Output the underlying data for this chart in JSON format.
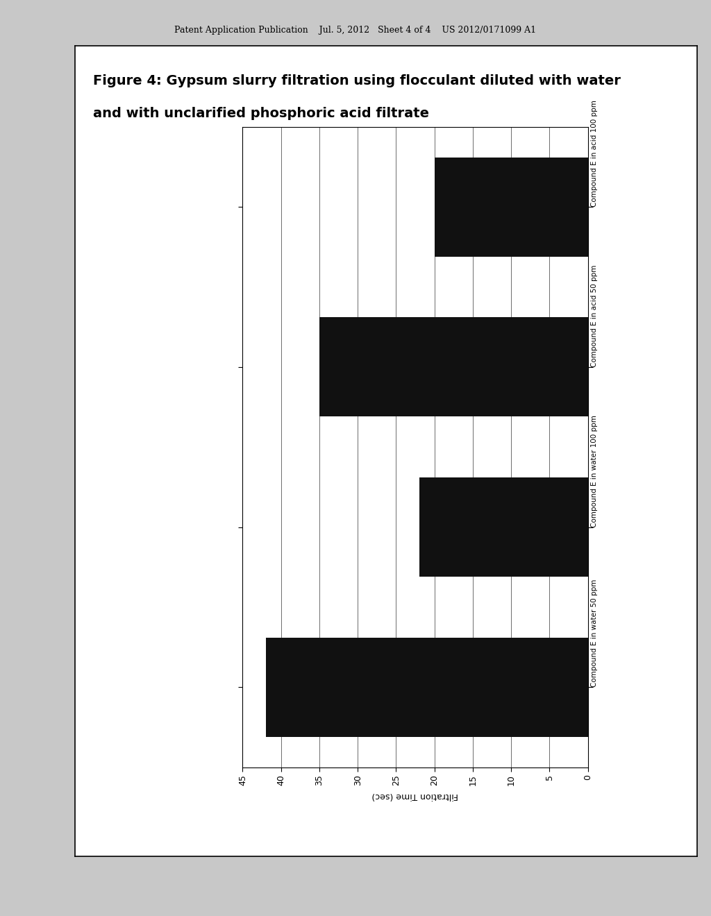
{
  "title_line1": "Figure 4: Gypsum slurry filtration using flocculant diluted with water",
  "title_line2": "and with unclarified phosphoric acid filtrate",
  "xlabel": "Filtration Time (sec)",
  "categories": [
    "Compound E in water 50 ppm",
    "Compound E in water 100 ppm",
    "Compound E in acid 50 ppm",
    "Compound E in acid 100 ppm"
  ],
  "values": [
    42.0,
    22.0,
    35.0,
    20.0
  ],
  "bar_color": "#111111",
  "xticks": [
    45,
    40,
    35,
    30,
    25,
    20,
    15,
    10,
    5,
    0
  ],
  "background_color": "#ffffff",
  "outer_bg": "#c8c8c8",
  "inner_bg": "#f0f0f0",
  "header_text": "Patent Application Publication    Jul. 5, 2012   Sheet 4 of 4    US 2012/0171099 A1",
  "header_fontsize": 9,
  "title_fontsize": 14,
  "tick_fontsize": 9,
  "label_fontsize": 9,
  "cat_label_fontsize": 7.5
}
